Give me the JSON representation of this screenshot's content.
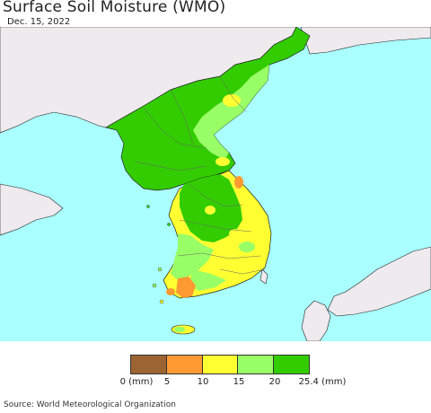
{
  "title": "Surface Soil Moisture (WMO)",
  "date": "Dec. 15, 2022",
  "source": "Source: World Meteorological Organization",
  "legend": {
    "colors": [
      "#9b6432",
      "#ff9a32",
      "#ffff32",
      "#99ff66",
      "#32cc00"
    ],
    "ticks": [
      "0 (mm)",
      "5",
      "10",
      "15",
      "20",
      "25.4 (mm)"
    ]
  },
  "colors": {
    "sea": "#aaffff",
    "foreign_land": "#eeeaee",
    "wettest": "#32cc00",
    "wet": "#99ff66",
    "moderate": "#ffff32",
    "dry": "#ff9a32"
  }
}
